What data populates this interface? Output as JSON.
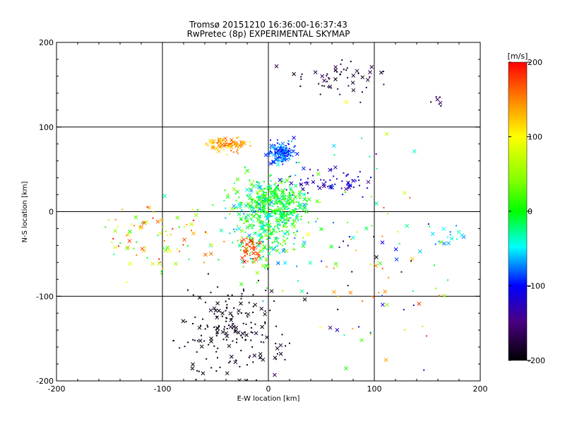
{
  "chart_data": {
    "type": "scatter",
    "title": "Tromsø 20151210 16:36:00-16:37:43",
    "subtitle": "RwPretec (8p) EXPERIMENTAL SKYMAP",
    "xlabel": "E-W location [km]",
    "ylabel": "N-S location [km]",
    "xlim": [
      -200,
      200
    ],
    "ylim": [
      -200,
      200
    ],
    "xticks": [
      -200,
      -100,
      0,
      100,
      200
    ],
    "yticks": [
      -200,
      -100,
      0,
      100,
      200
    ],
    "grid": true,
    "colorbar": {
      "label": "[m/s]",
      "range": [
        -200,
        200
      ],
      "ticks": [
        200,
        100,
        0,
        -100,
        -200
      ],
      "colormap": "rainbow-black"
    },
    "marker_types": [
      "dot",
      "cross"
    ],
    "clusters": [
      {
        "name": "center-mixed",
        "cx": 0,
        "cy": -10,
        "sx": 18,
        "sy": 28,
        "vmin": -80,
        "vmax": 60,
        "n": 420
      },
      {
        "name": "center-green",
        "cx": 8,
        "cy": 10,
        "sx": 15,
        "sy": 12,
        "vmin": -30,
        "vmax": 20,
        "n": 200
      },
      {
        "name": "blue-patch",
        "cx": 13,
        "cy": 70,
        "sx": 7,
        "sy": 6,
        "vmin": -110,
        "vmax": -60,
        "n": 130
      },
      {
        "name": "orange-patch",
        "cx": -40,
        "cy": 80,
        "sx": 10,
        "sy": 4,
        "vmin": 100,
        "vmax": 170,
        "n": 90
      },
      {
        "name": "red-center",
        "cx": -18,
        "cy": -45,
        "sx": 6,
        "sy": 7,
        "vmin": 150,
        "vmax": 200,
        "n": 45
      },
      {
        "name": "black-south",
        "cx": -35,
        "cy": -140,
        "sx": 22,
        "sy": 30,
        "vmin": -200,
        "vmax": -180,
        "n": 190
      },
      {
        "name": "purple-east",
        "cx": 60,
        "cy": 35,
        "sx": 20,
        "sy": 8,
        "vmin": -150,
        "vmax": -100,
        "n": 70
      },
      {
        "name": "dark-north",
        "cx": 70,
        "cy": 160,
        "sx": 22,
        "sy": 12,
        "vmin": -200,
        "vmax": -160,
        "n": 55
      },
      {
        "name": "west-mixed",
        "cx": -110,
        "cy": -30,
        "sx": 30,
        "sy": 25,
        "vmin": -40,
        "vmax": 200,
        "n": 90
      },
      {
        "name": "east-scatter",
        "cx": 90,
        "cy": -60,
        "sx": 45,
        "sy": 70,
        "vmin": -200,
        "vmax": 200,
        "n": 110
      },
      {
        "name": "east-cyan",
        "cx": 175,
        "cy": -35,
        "sx": 10,
        "sy": 6,
        "vmin": -80,
        "vmax": -40,
        "n": 14
      },
      {
        "name": "northeast-purple",
        "cx": 162,
        "cy": 130,
        "sx": 8,
        "sy": 8,
        "vmin": -190,
        "vmax": -150,
        "n": 7
      }
    ]
  }
}
